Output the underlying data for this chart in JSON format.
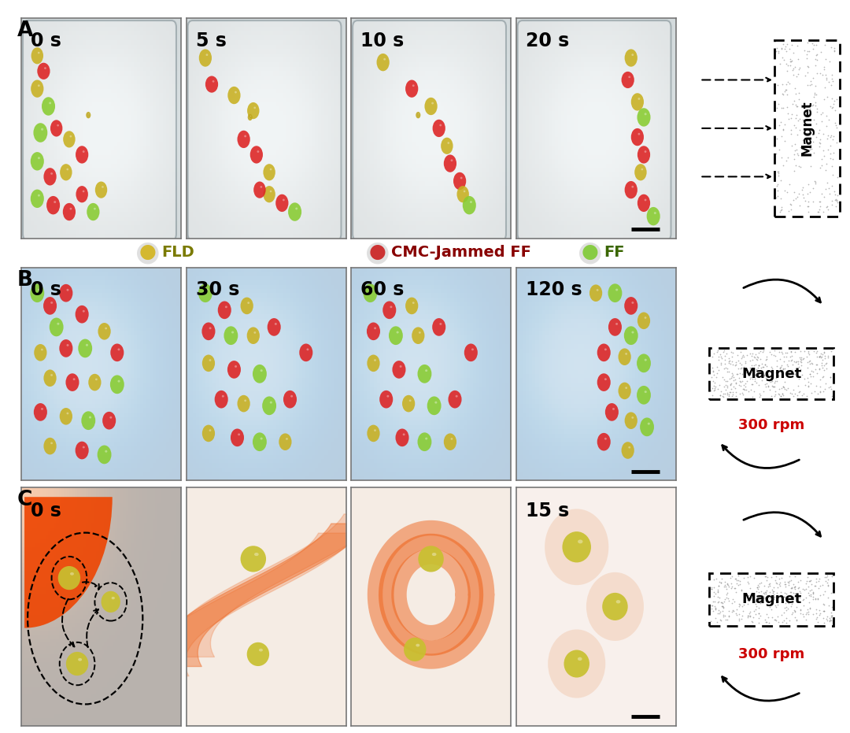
{
  "background_color": "#ffffff",
  "fig_width": 10.8,
  "fig_height": 9.31,
  "row_A": {
    "label": "A",
    "times": [
      "0 s",
      "5 s",
      "10 s",
      "20 s"
    ],
    "bg_color": "#e8eef0"
  },
  "row_B": {
    "label": "B",
    "times": [
      "0 s",
      "30 s",
      "60 s",
      "120 s"
    ],
    "bg_color": "#dce8f0"
  },
  "row_C": {
    "label": "C",
    "times": [
      "0 s",
      "",
      "",
      "15 s"
    ],
    "bg_color": "#f5ede8"
  },
  "legend": {
    "items": [
      {
        "label": "FLD",
        "dot_inner": "#d4b830",
        "dot_outer": "#c8a828",
        "text_color": "#7a7a00"
      },
      {
        "label": "CMC-Jammed FF",
        "dot_inner": "#cc3333",
        "dot_outer": "#aa2222",
        "text_color": "#880000"
      },
      {
        "label": "FF",
        "dot_inner": "#88cc44",
        "dot_outer": "#66aa22",
        "text_color": "#3a6600"
      }
    ]
  },
  "time_fontsize": 17,
  "legend_fontsize": 14,
  "magnet_fontsize": 11,
  "rpm_fontsize": 12,
  "label_fontsize": 19
}
